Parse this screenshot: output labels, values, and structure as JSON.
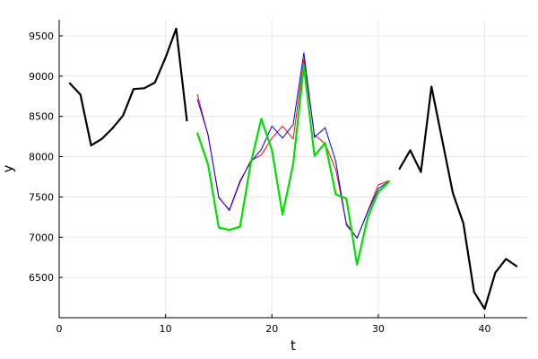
{
  "chart_data": {
    "type": "line",
    "xlabel": "t",
    "ylabel": "y",
    "xlim": [
      0,
      44
    ],
    "ylim": [
      6000,
      9700
    ],
    "x_ticks": [
      0,
      10,
      20,
      30,
      40
    ],
    "x_tick_labels": [
      "0",
      "10",
      "20",
      "30",
      "40"
    ],
    "y_ticks": [
      6500,
      7000,
      7500,
      8000,
      8500,
      9000,
      9500
    ],
    "y_tick_labels": [
      "6500",
      "7000",
      "7500",
      "8000",
      "8500",
      "9000",
      "9500"
    ],
    "grid": true,
    "legend": "none",
    "series": [
      {
        "color": "#000000",
        "line_width": "thick",
        "x": [
          1,
          2,
          3,
          4,
          5,
          6,
          7,
          8,
          9,
          10,
          11,
          12
        ],
        "y": [
          8910,
          8770,
          8140,
          8220,
          8350,
          8510,
          8840,
          8850,
          8920,
          9230,
          9590,
          8450
        ]
      },
      {
        "color": "#000000",
        "line_width": "thick",
        "x": [
          32,
          33,
          34,
          35,
          36,
          37,
          38,
          39,
          40,
          41,
          42,
          43
        ],
        "y": [
          7850,
          8080,
          7810,
          8870,
          8210,
          7550,
          7170,
          6320,
          6110,
          6560,
          6730,
          6640
        ]
      },
      {
        "color": "#ff0000",
        "line_width": "thin",
        "x": [
          13,
          14,
          15,
          16,
          17,
          18,
          19,
          20,
          21,
          22,
          23,
          24,
          25,
          26,
          27,
          28,
          29,
          30,
          31
        ],
        "y": [
          8770,
          8260,
          7500,
          7330,
          7680,
          7950,
          8020,
          8230,
          8380,
          8220,
          9210,
          8270,
          8160,
          7840,
          7170,
          6990,
          7320,
          7650,
          7700
        ]
      },
      {
        "color": "#0000ff",
        "line_width": "thin",
        "x": [
          13,
          14,
          15,
          16,
          17,
          18,
          19,
          20,
          21,
          22,
          23,
          24,
          25,
          26,
          27,
          28,
          29,
          30,
          31
        ],
        "y": [
          8710,
          8270,
          7490,
          7340,
          7700,
          7930,
          8090,
          8380,
          8230,
          8400,
          9290,
          8240,
          8360,
          7940,
          7150,
          6990,
          7310,
          7600,
          7700
        ]
      },
      {
        "color": "#00e000",
        "line_width": "thick",
        "x": [
          13,
          14,
          15,
          16,
          17,
          18,
          19,
          20,
          21,
          22,
          23,
          24,
          25,
          26,
          27,
          28,
          29,
          30,
          31
        ],
        "y": [
          8290,
          7900,
          7120,
          7090,
          7130,
          7910,
          8470,
          8080,
          7280,
          7910,
          9130,
          8010,
          8170,
          7530,
          7480,
          6660,
          7240,
          7560,
          7690
        ]
      }
    ]
  }
}
